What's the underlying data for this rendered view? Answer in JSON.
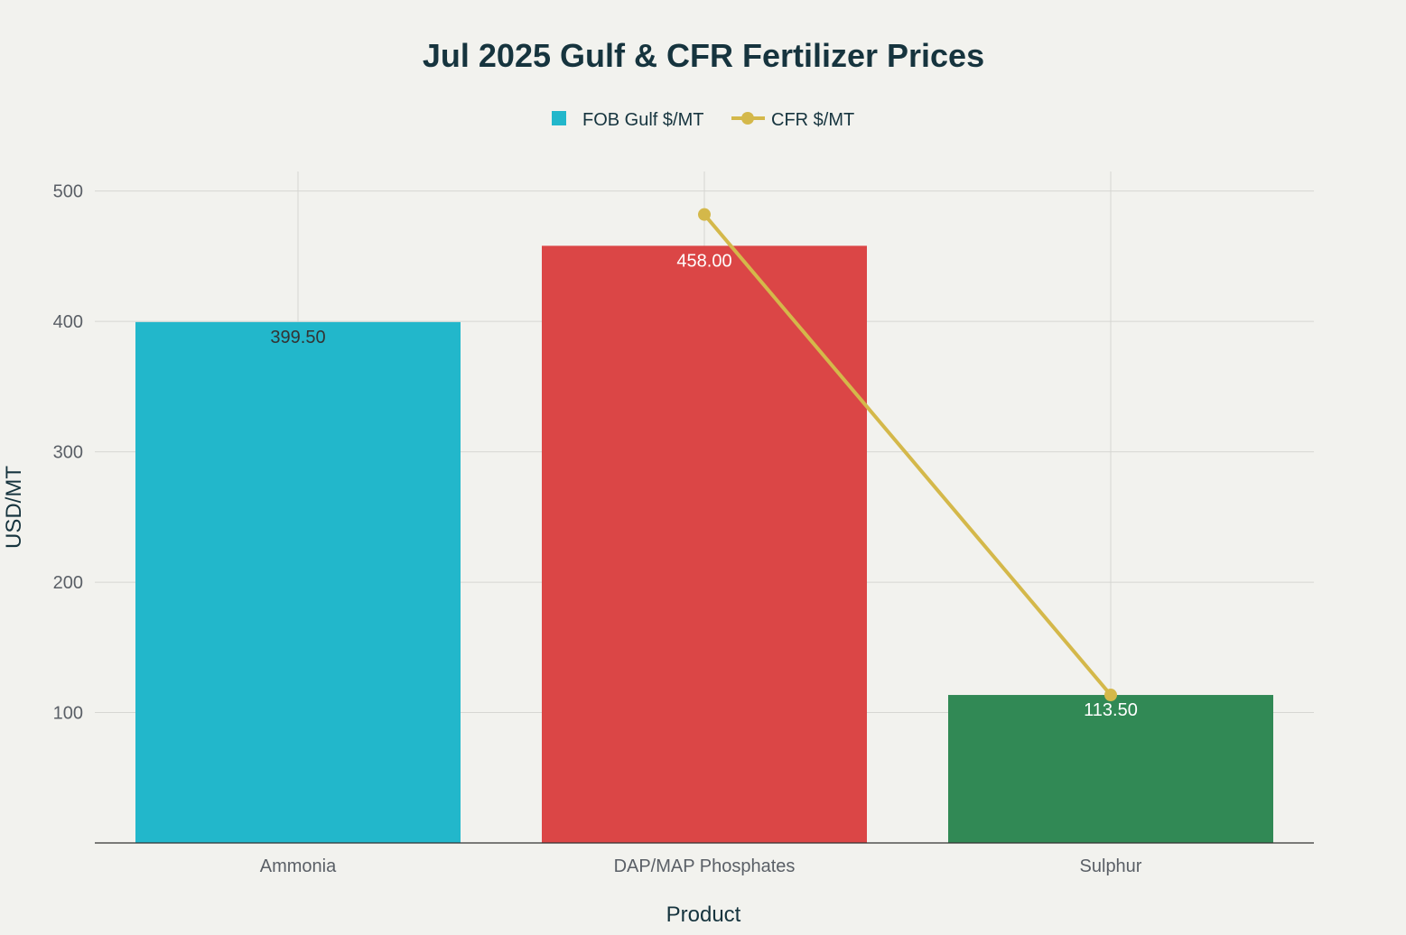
{
  "chart_data": {
    "type": "bar",
    "title": "Jul 2025 Gulf & CFR Fertilizer Prices",
    "xlabel": "Product",
    "ylabel": "USD/MT",
    "categories": [
      "Ammonia",
      "DAP/MAP Phosphates",
      "Sulphur"
    ],
    "ylim": [
      0,
      515
    ],
    "yticks": [
      100,
      200,
      300,
      400,
      500
    ],
    "grid": true,
    "legend_position": "top-center",
    "series": [
      {
        "name": "FOB Gulf $/MT",
        "type": "bar",
        "values": [
          399.5,
          458.0,
          113.5
        ],
        "data_labels": [
          "399.50",
          "458.00",
          "113.50"
        ],
        "colors": [
          "#22b7cb",
          "#db4646",
          "#318955"
        ],
        "label_colors": [
          "#333333",
          "#ffffff",
          "#ffffff"
        ],
        "legend_color": "#22b7cb"
      },
      {
        "name": "CFR $/MT",
        "type": "line",
        "x": [
          "DAP/MAP Phosphates",
          "Sulphur"
        ],
        "values": [
          482,
          113.5
        ],
        "color": "#d4b84a"
      }
    ]
  }
}
